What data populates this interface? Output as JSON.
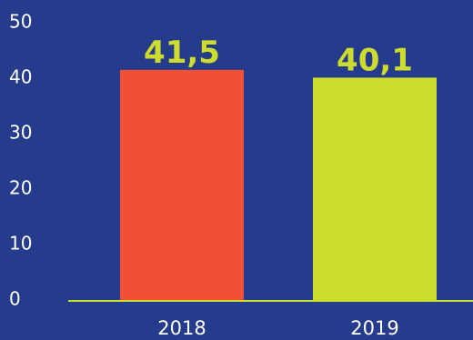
{
  "chart_data": {
    "type": "bar",
    "title": "",
    "xlabel": "",
    "ylabel": "",
    "categories": [
      "2018",
      "2019"
    ],
    "values": [
      41.5,
      40.1
    ],
    "data_labels": [
      "41,5",
      "40,1"
    ],
    "ylim": [
      0,
      50
    ],
    "yticks": [
      0,
      10,
      20,
      30,
      40,
      50
    ],
    "grid": false,
    "legend": "none",
    "colors": {
      "background": "#253B8C",
      "bars": [
        "#F05033",
        "#CEDC2E"
      ],
      "data_label": "#CEDC2E",
      "axis_line": "#CEDC2E",
      "tick_text": "#FFFFFF"
    }
  }
}
